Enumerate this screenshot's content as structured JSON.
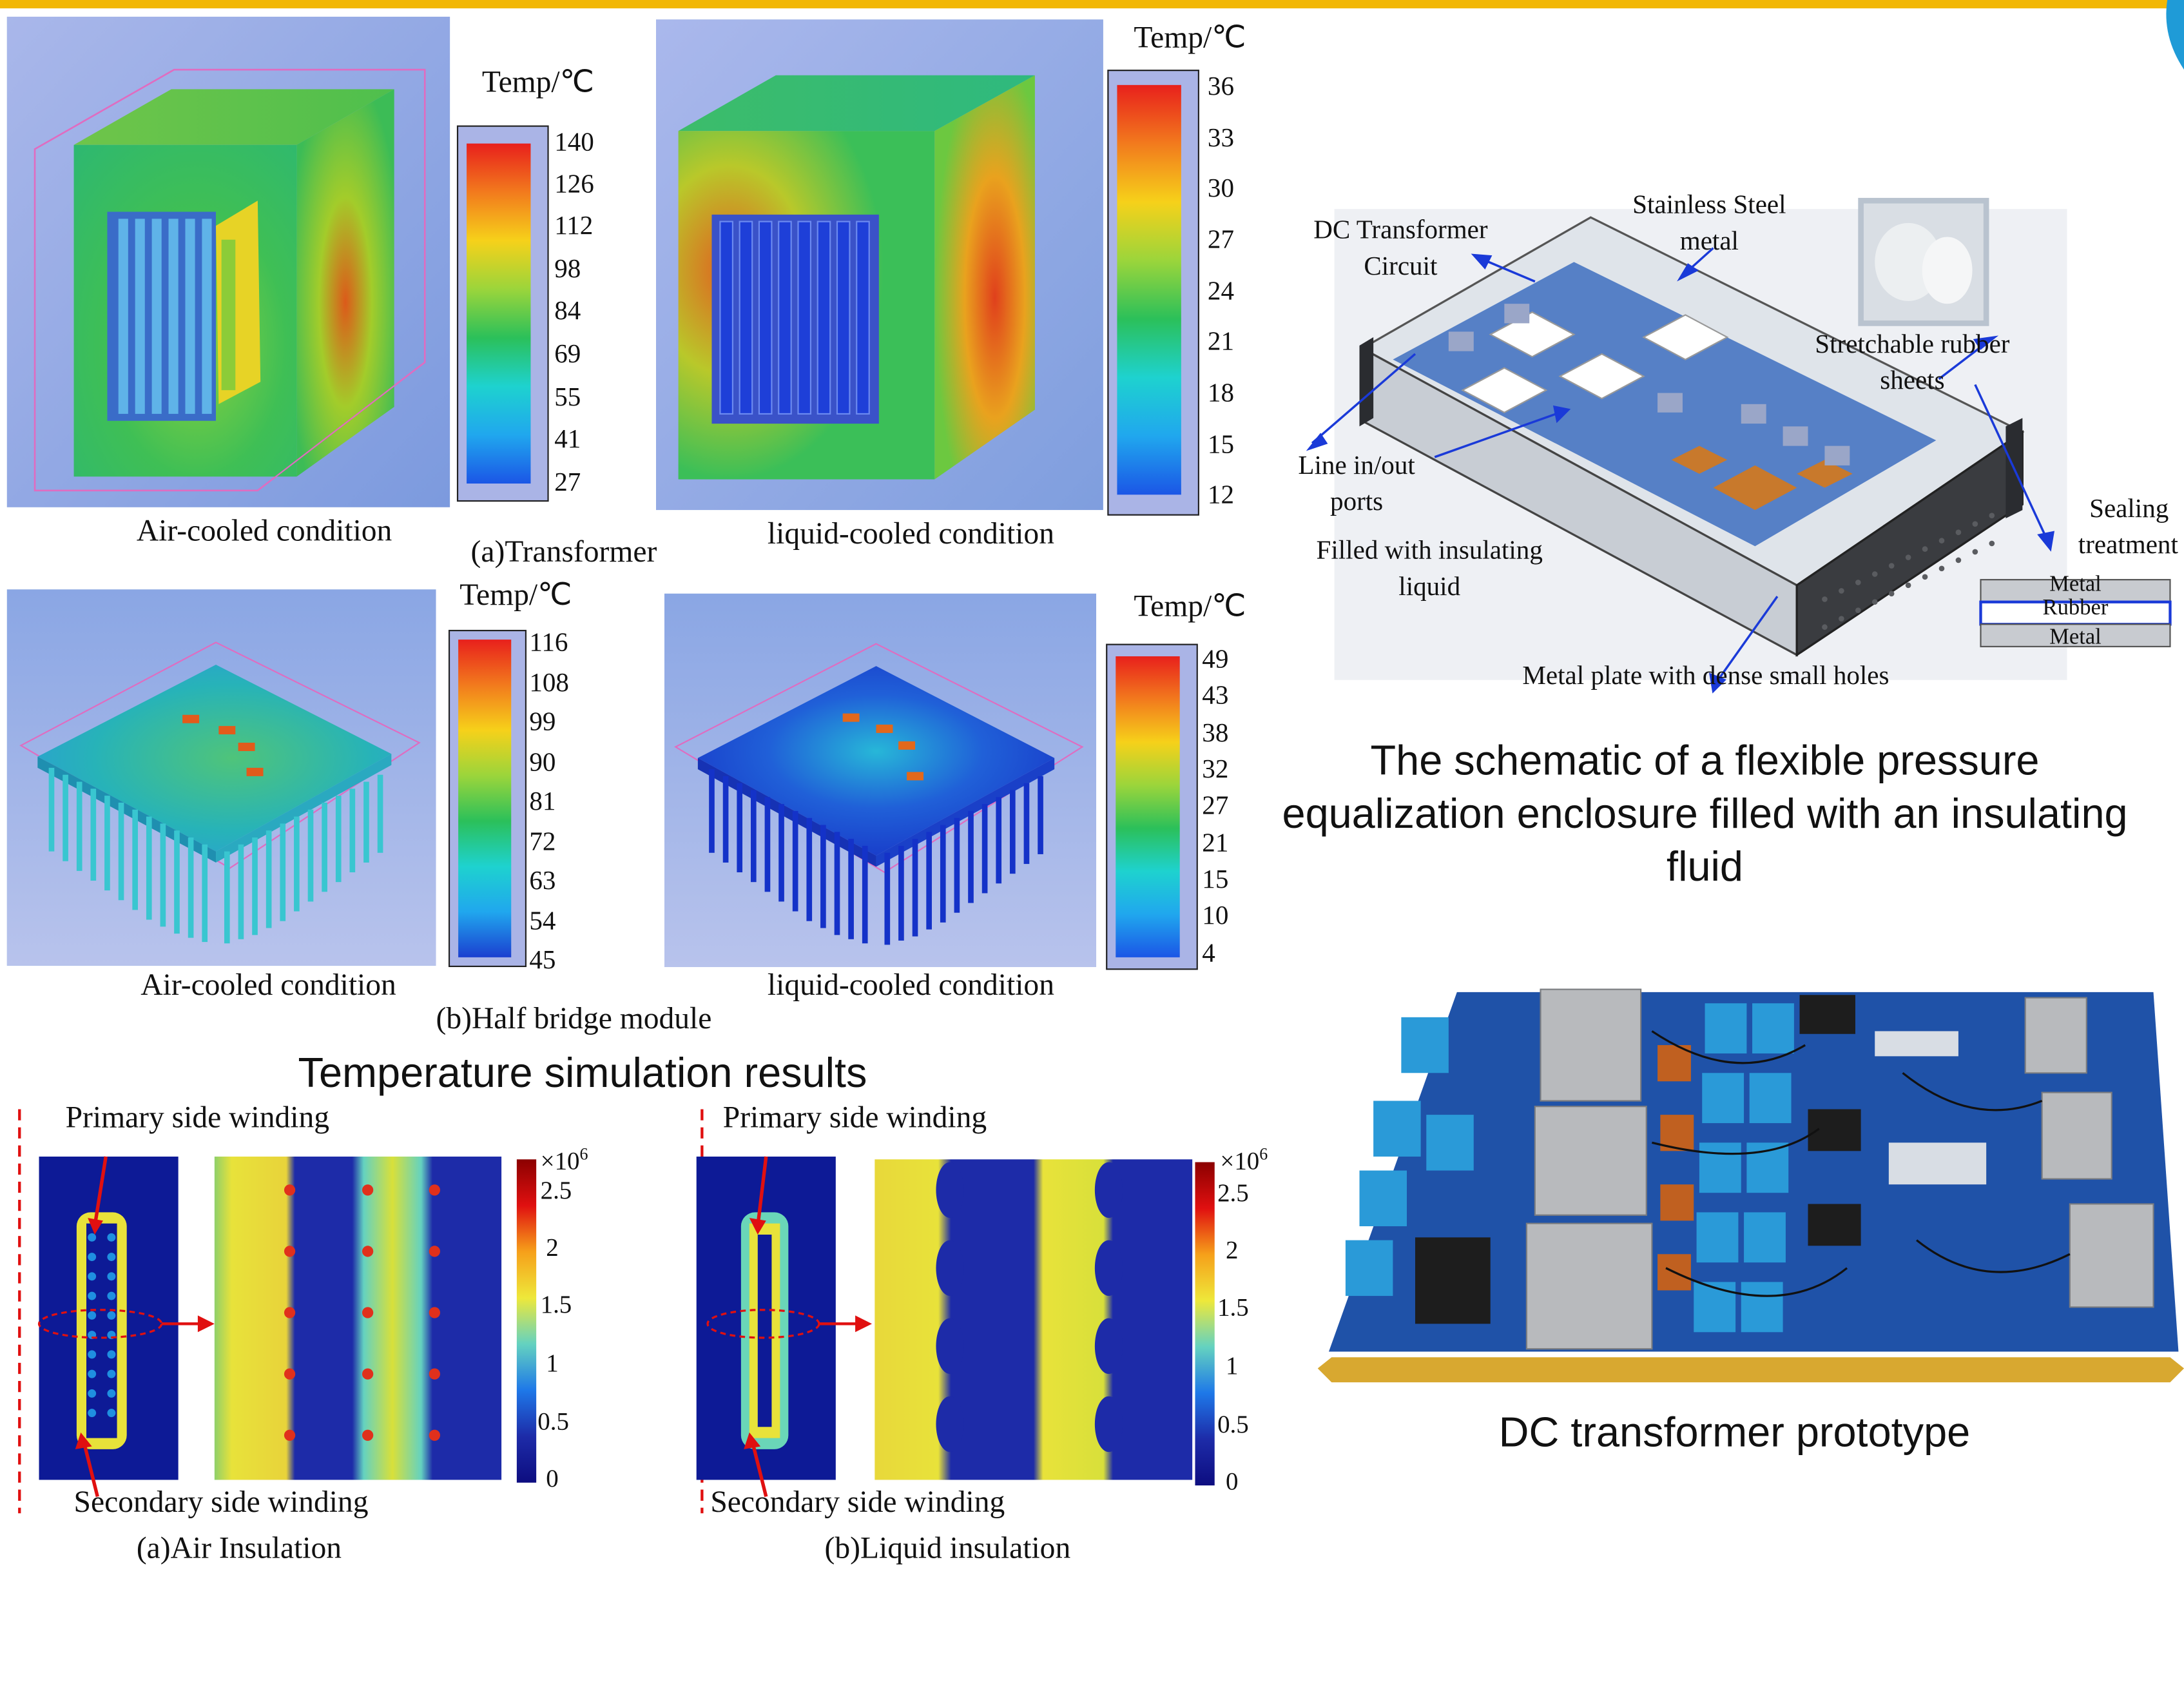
{
  "brand_colors": {
    "top_bar": "#f2b705",
    "corner_accent": "#1f9bd7",
    "arrow": "#1a3ad8",
    "red_marker": "#e01010"
  },
  "transformer": {
    "cb1": {
      "title": "Temp/℃",
      "ticks": [
        "140",
        "126",
        "112",
        "98",
        "84",
        "69",
        "55",
        "41",
        "27"
      ]
    },
    "cb2": {
      "title": "Temp/℃",
      "ticks": [
        "36",
        "33",
        "30",
        "27",
        "24",
        "21",
        "18",
        "15",
        "12"
      ]
    },
    "air_label": "Air-cooled condition",
    "liquid_label": "liquid-cooled condition",
    "caption": "(a)Transformer"
  },
  "halfbridge": {
    "cb1": {
      "title": "Temp/℃",
      "ticks": [
        "116",
        "108",
        "99",
        "90",
        "81",
        "72",
        "63",
        "54",
        "45"
      ]
    },
    "cb2": {
      "title": "Temp/℃",
      "ticks": [
        "49",
        "43",
        "38",
        "32",
        "27",
        "21",
        "15",
        "10",
        "4"
      ]
    },
    "air_label": "Air-cooled condition",
    "liquid_label": "liquid-cooled condition",
    "caption": "(b)Half bridge module"
  },
  "sim_title": "Temperature simulation results",
  "insulation": {
    "primary": "Primary side winding",
    "secondary": "Secondary side winding",
    "cb": {
      "title_base": "×10",
      "title_exp": "6",
      "ticks": [
        "2.5",
        "2",
        "1.5",
        "1",
        "0.5",
        "0"
      ]
    },
    "air_caption": "(a)Air Insulation",
    "liquid_caption": "(b)Liquid insulation"
  },
  "enclosure": {
    "dc_circuit": [
      "DC Transformer",
      "Circuit"
    ],
    "stainless": [
      "Stainless Steel",
      "metal"
    ],
    "rubber": [
      "Stretchable rubber",
      "sheets"
    ],
    "line_ports": [
      "Line in/out",
      "ports"
    ],
    "sealing": [
      "Sealing",
      "treatment"
    ],
    "filled": [
      "Filled with insulating",
      "liquid"
    ],
    "metal_plate": "Metal plate with dense small holes",
    "layers": [
      "Metal",
      "Rubber",
      "Metal"
    ],
    "caption_lines": [
      "The schematic of a flexible pressure",
      "equalization enclosure filled with an insulating",
      "fluid"
    ]
  },
  "prototype_caption": "DC transformer prototype"
}
